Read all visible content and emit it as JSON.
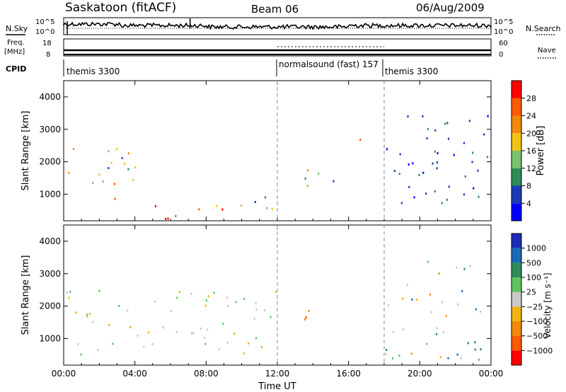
{
  "header": {
    "station": "Saskatoon (fitACF)",
    "beam": "Beam 06",
    "date": "06/Aug/2009"
  },
  "strip": {
    "nsky_label": "N.Sky",
    "nsky_ticks": [
      "10^5",
      "10^0"
    ],
    "nsearch_label": "N.Search",
    "nsearch_ticks": [
      "10^5",
      "10^0"
    ],
    "freq_label": "Freq.",
    "freq_unit": "[MHz]",
    "freq_ticks": [
      "18",
      "8"
    ],
    "nave_label": "Nave",
    "nave_ticks": [
      "60",
      "0"
    ],
    "cpid_label": "CPID",
    "cpid_segments": [
      {
        "label": "themis 3300",
        "start_ut": 0,
        "end_ut": 12
      },
      {
        "label": "normalsound (fast) 157",
        "start_ut": 12,
        "end_ut": 18
      },
      {
        "label": "themis 3300",
        "start_ut": 18,
        "end_ut": 24
      }
    ]
  },
  "chart_data": [
    {
      "type": "heatmap",
      "title": "",
      "xlabel": "",
      "ylabel": "Slant Range [km]",
      "xlim": [
        0,
        24
      ],
      "ylim": [
        180,
        4500
      ],
      "yticks": [
        1000,
        2000,
        3000,
        4000
      ],
      "xticks": [
        "00:00",
        "04:00",
        "08:00",
        "12:00",
        "16:00",
        "20:00",
        "00:00"
      ],
      "colorbar": {
        "label": "Power [dB]",
        "ticks": [
          "28",
          "24",
          "20",
          "16",
          "12",
          "8",
          "4"
        ],
        "colors": [
          "#0000ff",
          "#1c3cb4",
          "#2e8b57",
          "#76c36b",
          "#f2c414",
          "#f08a0a",
          "#ff5a00",
          "#ff0000"
        ]
      },
      "features": [
        {
          "ut_start": 0,
          "ut_end": 5,
          "range_low": 1500,
          "range_high": 2400,
          "level": "medium"
        },
        {
          "ut_start": 1.5,
          "ut_end": 4.5,
          "range_low": 800,
          "range_high": 1600,
          "level": "high"
        },
        {
          "ut_start": 5,
          "ut_end": 9.5,
          "range_low": 180,
          "range_high": 700,
          "level": "very high"
        },
        {
          "ut_start": 8,
          "ut_end": 12,
          "range_low": 500,
          "range_high": 1100,
          "level": "medium"
        },
        {
          "ut_start": 13.5,
          "ut_end": 15.5,
          "range_low": 1200,
          "range_high": 2200,
          "level": "medium"
        },
        {
          "ut_start": 16.5,
          "ut_end": 17,
          "range_low": 2300,
          "range_high": 2700,
          "level": "high"
        },
        {
          "ut_start": 18,
          "ut_end": 24,
          "range_low": 700,
          "range_high": 3500,
          "level": "low"
        }
      ]
    },
    {
      "type": "heatmap",
      "title": "",
      "xlabel": "Time UT",
      "ylabel": "Slant Range [km]",
      "xlim": [
        0,
        24
      ],
      "ylim": [
        180,
        4500
      ],
      "yticks": [
        1000,
        2000,
        3000,
        4000
      ],
      "xticks": [
        "00:00",
        "04:00",
        "08:00",
        "12:00",
        "16:00",
        "20:00",
        "00:00"
      ],
      "colorbar": {
        "label": "Velocity [m s⁻¹]",
        "ticks": [
          "1000",
          "500",
          "100",
          "25",
          "−25",
          "−100",
          "−500",
          "−1000"
        ],
        "colors": [
          "#ff0000",
          "#ff5a00",
          "#f08a0a",
          "#f2b414",
          "#c8c8c8",
          "#5fc45f",
          "#2e8b57",
          "#1c6ab4",
          "#1c2cb4"
        ]
      },
      "features": [
        {
          "ut_start": 0,
          "ut_end": 12,
          "range_low": 180,
          "range_high": 2500,
          "level": "ground scatter"
        },
        {
          "ut_start": 13.5,
          "ut_end": 15.5,
          "range_low": 1200,
          "range_high": 2000,
          "level": "negative"
        },
        {
          "ut_start": 16.5,
          "ut_end": 17,
          "range_low": 2300,
          "range_high": 2700,
          "level": "negative"
        },
        {
          "ut_start": 18,
          "ut_end": 24,
          "range_low": 300,
          "range_high": 3500,
          "level": "mixed"
        }
      ]
    }
  ]
}
